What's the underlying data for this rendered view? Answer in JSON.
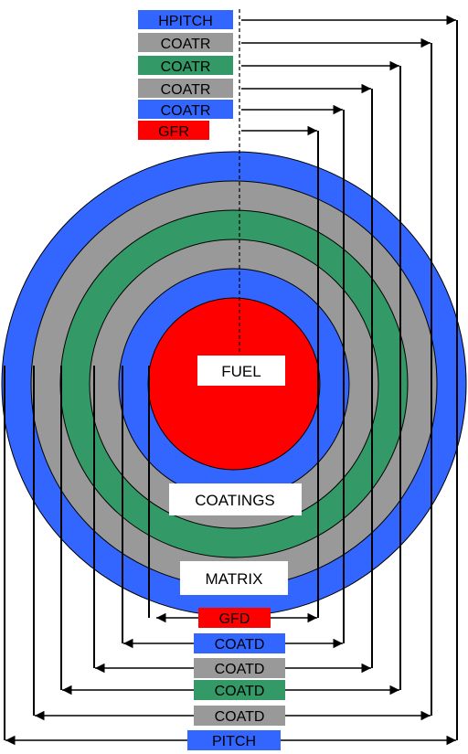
{
  "colors": {
    "blue": "#3366ff",
    "gray": "#999999",
    "green": "#339966",
    "red": "#ff0000",
    "line": "#000000",
    "label_bg": "#ffffff"
  },
  "top_labels": [
    {
      "text": "HPITCH",
      "color": "blue"
    },
    {
      "text": "COATR",
      "color": "gray"
    },
    {
      "text": "COATR",
      "color": "green"
    },
    {
      "text": "COATR",
      "color": "gray"
    },
    {
      "text": "COATR",
      "color": "blue"
    },
    {
      "text": "GFR",
      "color": "red"
    }
  ],
  "bottom_labels": [
    {
      "text": "GFD",
      "color": "red"
    },
    {
      "text": "COATD",
      "color": "blue"
    },
    {
      "text": "COATD",
      "color": "gray"
    },
    {
      "text": "COATD",
      "color": "green"
    },
    {
      "text": "COATD",
      "color": "gray"
    },
    {
      "text": "PITCH",
      "color": "blue"
    }
  ],
  "rings": [
    {
      "color": "blue"
    },
    {
      "color": "gray"
    },
    {
      "color": "green"
    },
    {
      "color": "gray"
    },
    {
      "color": "blue"
    },
    {
      "color": "red"
    }
  ],
  "region_labels": {
    "fuel": "FUEL",
    "coatings": "COATINGS",
    "matrix": "MATRIX"
  }
}
